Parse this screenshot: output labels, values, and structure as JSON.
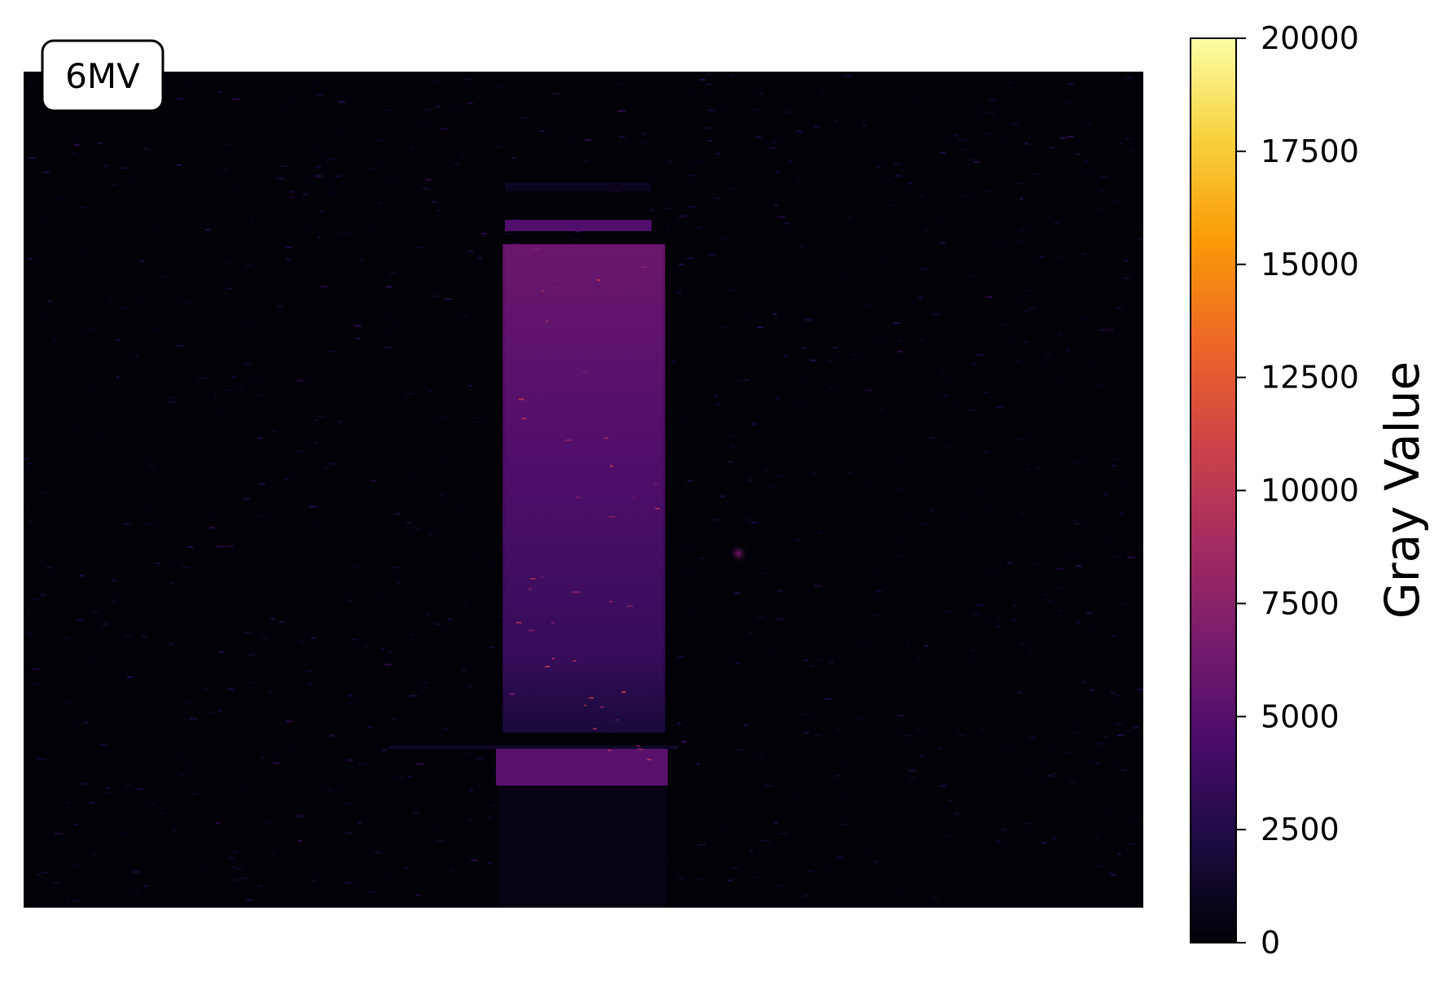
{
  "panel_label": "6MV",
  "colorbar": {
    "title": "Gray Value",
    "colormap": "inferno",
    "min": 0,
    "max": 20000,
    "ticks": [
      {
        "value": 0,
        "label": "0"
      },
      {
        "value": 2500,
        "label": "2500"
      },
      {
        "value": 5000,
        "label": "5000"
      },
      {
        "value": 7500,
        "label": "7500"
      },
      {
        "value": 10000,
        "label": "10000"
      },
      {
        "value": 12500,
        "label": "12500"
      },
      {
        "value": 15000,
        "label": "15000"
      },
      {
        "value": 17500,
        "label": "17500"
      },
      {
        "value": 20000,
        "label": "20000"
      }
    ]
  },
  "image": {
    "background_value": 150,
    "main_block_value_top": 6000,
    "main_block_value_bottom": 3500,
    "lower_strip_value": 5200,
    "hot_spot_value": 6500
  },
  "colors": {
    "inferno_stops": [
      "#000004",
      "#1b0c41",
      "#4a0c6b",
      "#781c6d",
      "#a52c60",
      "#cf4446",
      "#ed6925",
      "#fb9b06",
      "#f7d13d",
      "#fcffa4"
    ]
  }
}
